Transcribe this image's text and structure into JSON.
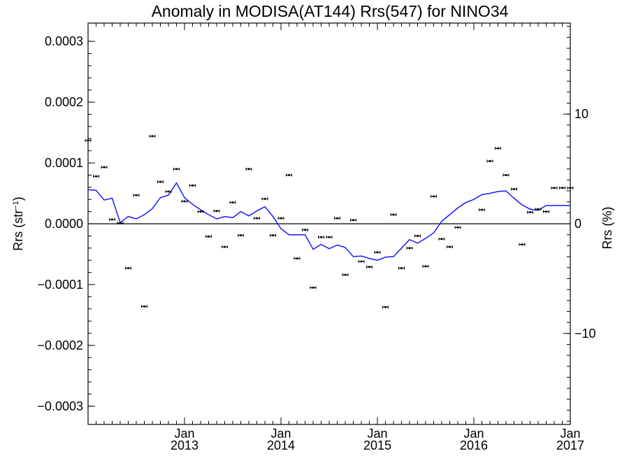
{
  "chart_data": {
    "type": "line",
    "title": "Anomaly in MODISA(AT144) Rrs(547) for NINO34",
    "ylabel_left_main": "Rrs (str",
    "ylabel_left_sup": "−1",
    "ylabel_left_close": ")",
    "ylabel_right": "Rrs (%)",
    "xlim": [
      "2012-01-01",
      "2017-01-01"
    ],
    "ylim_left": [
      -0.00033,
      0.00033
    ],
    "ylim_right": [
      -18.3,
      18.3
    ],
    "yticks_left": [
      -0.0003,
      -0.0002,
      -0.0001,
      0.0,
      0.0001,
      0.0002,
      0.0003
    ],
    "ytick_labels_left": [
      "−0.0003",
      "−0.0002",
      "−0.0001",
      "0.0000",
      "0.0001",
      "0.0002",
      "0.0003"
    ],
    "yticks_right": [
      -10,
      0,
      10
    ],
    "ytick_labels_right": [
      "−10",
      "0",
      "10"
    ],
    "xticks": [
      {
        "date": "2013-01-01",
        "line1": "Jan",
        "line2": "2013"
      },
      {
        "date": "2014-01-01",
        "line1": "Jan",
        "line2": "2014"
      },
      {
        "date": "2015-01-01",
        "line1": "Jan",
        "line2": "2015"
      },
      {
        "date": "2016-01-01",
        "line1": "Jan",
        "line2": "2016"
      },
      {
        "date": "2017-01-01",
        "line1": "Jan",
        "line2": "2017"
      }
    ],
    "series": [
      {
        "style": "points-with-errorbars",
        "color": "#000000",
        "x": [
          "2012-01-01",
          "2012-02-01",
          "2012-03-01",
          "2012-04-01",
          "2012-05-01",
          "2012-06-01",
          "2012-07-01",
          "2012-08-01",
          "2012-09-01",
          "2012-10-01",
          "2012-11-01",
          "2012-12-01",
          "2013-01-01",
          "2013-02-01",
          "2013-03-01",
          "2013-04-01",
          "2013-05-01",
          "2013-06-01",
          "2013-07-01",
          "2013-08-01",
          "2013-09-01",
          "2013-10-01",
          "2013-11-01",
          "2013-12-01",
          "2014-01-01",
          "2014-02-01",
          "2014-03-01",
          "2014-04-01",
          "2014-05-01",
          "2014-06-01",
          "2014-07-01",
          "2014-08-01",
          "2014-09-01",
          "2014-10-01",
          "2014-11-01",
          "2014-12-01",
          "2015-01-01",
          "2015-02-01",
          "2015-03-01",
          "2015-04-01",
          "2015-05-01",
          "2015-06-01",
          "2015-07-01",
          "2015-08-01",
          "2015-09-01",
          "2015-10-01",
          "2015-11-01",
          "2016-02-01",
          "2016-03-01",
          "2016-04-01",
          "2016-05-01",
          "2016-06-01",
          "2016-07-01",
          "2016-08-01",
          "2016-09-01",
          "2016-10-01",
          "2016-11-01",
          "2016-12-01",
          "2017-01-01"
        ],
        "y": [
          0.000137,
          7.8e-05,
          9.3e-05,
          7e-06,
          1e-06,
          -7.3e-05,
          4.7e-05,
          -0.000136,
          0.000144,
          6.9e-05,
          5.3e-05,
          9e-05,
          3.7e-05,
          6.3e-05,
          2e-05,
          -2.1e-05,
          2.1e-05,
          -3.8e-05,
          3.5e-05,
          -1.9e-05,
          9e-05,
          9e-06,
          4.1e-05,
          -1.9e-05,
          9e-06,
          8e-05,
          -5.7e-05,
          -1e-05,
          -0.000105,
          -2.2e-05,
          -2.2e-05,
          9e-06,
          -8.4e-05,
          6e-06,
          -6.2e-05,
          -7.1e-05,
          -4.7e-05,
          -0.000137,
          1.5e-05,
          -7.3e-05,
          -4e-05,
          -2e-05,
          -7e-05,
          4.5e-05,
          -2.5e-05,
          -3.8e-05,
          -6e-06,
          2.3e-05,
          0.000103,
          0.000124,
          8e-05,
          5.7e-05,
          -3.4e-05,
          1.9e-05,
          2.4e-05,
          2e-05,
          5.9e-05,
          5.9e-05,
          5.9e-05
        ]
      },
      {
        "style": "line",
        "color": "#1a1aff",
        "x": [
          "2012-01-01",
          "2012-02-01",
          "2012-03-01",
          "2012-04-01",
          "2012-05-01",
          "2012-06-01",
          "2012-07-01",
          "2012-08-01",
          "2012-09-01",
          "2012-10-01",
          "2012-11-01",
          "2012-12-01",
          "2013-01-01",
          "2013-02-01",
          "2013-03-01",
          "2013-04-01",
          "2013-05-01",
          "2013-06-01",
          "2013-07-01",
          "2013-08-01",
          "2013-09-01",
          "2013-10-01",
          "2013-11-01",
          "2013-12-01",
          "2014-01-01",
          "2014-02-01",
          "2014-03-01",
          "2014-04-01",
          "2014-05-01",
          "2014-06-01",
          "2014-07-01",
          "2014-08-01",
          "2014-09-01",
          "2014-10-01",
          "2014-11-01",
          "2014-12-01",
          "2015-01-01",
          "2015-02-01",
          "2015-03-01",
          "2015-04-01",
          "2015-05-01",
          "2015-06-01",
          "2015-07-01",
          "2015-08-01",
          "2015-09-01",
          "2015-10-01",
          "2015-11-01",
          "2015-12-01",
          "2016-01-01",
          "2016-02-01",
          "2016-03-01",
          "2016-04-01",
          "2016-05-01",
          "2016-06-01",
          "2016-07-01",
          "2016-08-01",
          "2016-09-01",
          "2016-10-01",
          "2016-11-01",
          "2016-12-01",
          "2017-01-01"
        ],
        "y": [
          5.6e-05,
          5.5e-05,
          3.9e-05,
          4.2e-05,
          2e-06,
          1.2e-05,
          8e-06,
          1.5e-05,
          2.5e-05,
          4.3e-05,
          4.7e-05,
          6.7e-05,
          4.3e-05,
          3.2e-05,
          2.3e-05,
          1.5e-05,
          8e-06,
          1.2e-05,
          1e-05,
          2e-05,
          1.3e-05,
          2.1e-05,
          2.8e-05,
          1.2e-05,
          -8e-06,
          -1.8e-05,
          -1.8e-05,
          -1.8e-05,
          -4.2e-05,
          -3.4e-05,
          -4.1e-05,
          -3.5e-05,
          -3.9e-05,
          -5.4e-05,
          -5.3e-05,
          -5.7e-05,
          -6e-05,
          -5.5e-05,
          -5.4e-05,
          -4e-05,
          -2.6e-05,
          -3.2e-05,
          -2.4e-05,
          -1.5e-05,
          4e-06,
          1.5e-05,
          2.6e-05,
          3.5e-05,
          4e-05,
          4.8e-05,
          5e-05,
          5.3e-05,
          5.4e-05,
          4.2e-05,
          3.1e-05,
          2.4e-05,
          2.2e-05,
          3e-05,
          3e-05,
          3e-05,
          3e-05
        ]
      }
    ],
    "zero_line": true,
    "grid": false,
    "legend": "none"
  }
}
